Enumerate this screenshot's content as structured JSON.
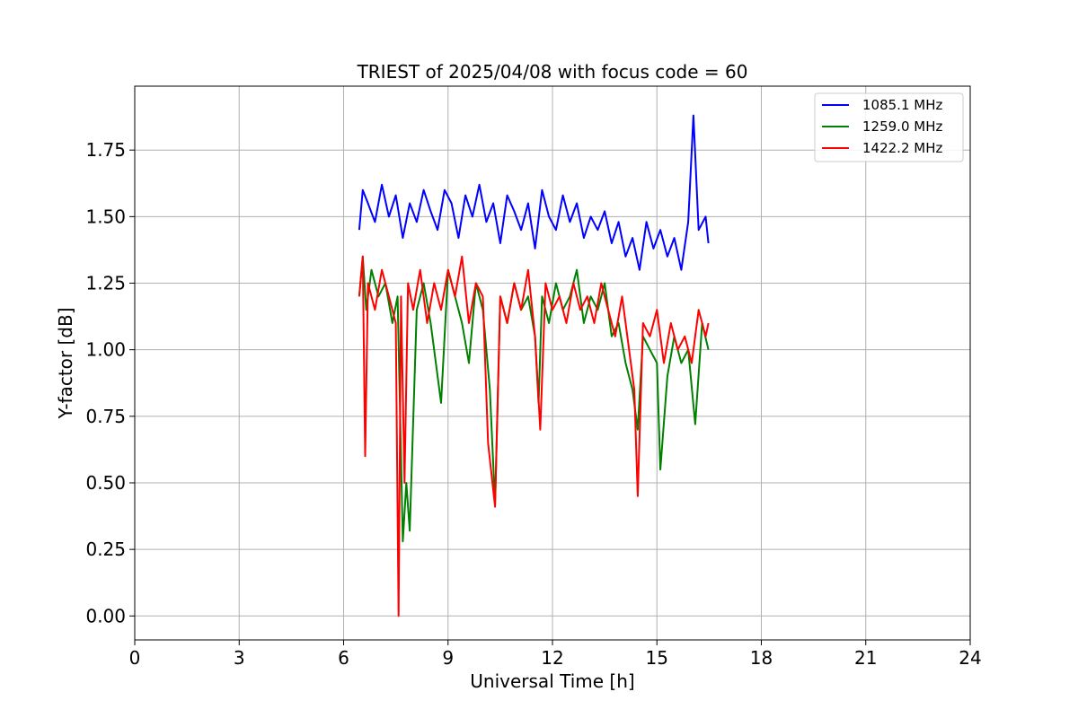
{
  "chart_data": {
    "type": "line",
    "title": "TRIEST of 2025/04/08 with focus code = 60",
    "xlabel": "Universal Time [h]",
    "ylabel": "Y-factor [dB]",
    "xlim": [
      0,
      24
    ],
    "ylim": [
      -0.09,
      1.99
    ],
    "xticks": [
      0,
      3,
      6,
      9,
      12,
      15,
      18,
      21,
      24
    ],
    "yticks": [
      0.0,
      0.25,
      0.5,
      0.75,
      1.0,
      1.25,
      1.5,
      1.75
    ],
    "ytick_labels": [
      "0.00",
      "0.25",
      "0.50",
      "0.75",
      "1.00",
      "1.25",
      "1.50",
      "1.75"
    ],
    "grid": true,
    "legend_position": "top-right",
    "series": [
      {
        "name": "1085.1 MHz",
        "color": "#0000ff",
        "x": [
          6.45,
          6.55,
          6.7,
          6.9,
          7.1,
          7.3,
          7.5,
          7.7,
          7.9,
          8.1,
          8.3,
          8.5,
          8.7,
          8.9,
          9.1,
          9.3,
          9.5,
          9.7,
          9.9,
          10.1,
          10.3,
          10.5,
          10.7,
          10.9,
          11.1,
          11.3,
          11.5,
          11.7,
          11.9,
          12.1,
          12.3,
          12.5,
          12.7,
          12.9,
          13.1,
          13.3,
          13.5,
          13.7,
          13.9,
          14.1,
          14.3,
          14.5,
          14.7,
          14.9,
          15.1,
          15.3,
          15.5,
          15.7,
          15.9,
          16.05,
          16.2,
          16.4,
          16.48
        ],
        "y": [
          1.45,
          1.6,
          1.55,
          1.48,
          1.62,
          1.5,
          1.58,
          1.42,
          1.55,
          1.48,
          1.6,
          1.52,
          1.45,
          1.6,
          1.55,
          1.42,
          1.58,
          1.5,
          1.62,
          1.48,
          1.55,
          1.4,
          1.58,
          1.52,
          1.45,
          1.55,
          1.38,
          1.6,
          1.5,
          1.45,
          1.58,
          1.48,
          1.55,
          1.42,
          1.5,
          1.45,
          1.52,
          1.4,
          1.48,
          1.35,
          1.42,
          1.3,
          1.48,
          1.38,
          1.45,
          1.35,
          1.42,
          1.3,
          1.48,
          1.88,
          1.45,
          1.5,
          1.4
        ]
      },
      {
        "name": "1259.0 MHz",
        "color": "#008000",
        "x": [
          6.45,
          6.55,
          6.65,
          6.8,
          7.0,
          7.2,
          7.4,
          7.55,
          7.7,
          7.8,
          7.9,
          8.1,
          8.3,
          8.5,
          8.8,
          9.0,
          9.2,
          9.4,
          9.6,
          9.8,
          10.0,
          10.2,
          10.35,
          10.5,
          10.7,
          10.9,
          11.1,
          11.3,
          11.5,
          11.6,
          11.7,
          11.9,
          12.1,
          12.3,
          12.5,
          12.7,
          12.9,
          13.1,
          13.3,
          13.5,
          13.7,
          13.9,
          14.1,
          14.3,
          14.45,
          14.6,
          14.8,
          15.0,
          15.1,
          15.3,
          15.5,
          15.7,
          15.9,
          16.1,
          16.3,
          16.48
        ],
        "y": [
          1.2,
          1.35,
          1.15,
          1.3,
          1.2,
          1.25,
          1.1,
          1.2,
          0.28,
          0.5,
          0.32,
          1.15,
          1.25,
          1.1,
          0.8,
          1.3,
          1.2,
          1.1,
          0.95,
          1.25,
          1.15,
          0.85,
          0.42,
          1.2,
          1.1,
          1.25,
          1.15,
          1.2,
          1.05,
          0.8,
          1.2,
          1.1,
          1.25,
          1.15,
          1.2,
          1.3,
          1.1,
          1.2,
          1.15,
          1.25,
          1.05,
          1.1,
          0.95,
          0.85,
          0.7,
          1.05,
          1.0,
          0.95,
          0.55,
          0.9,
          1.05,
          0.95,
          1.0,
          0.72,
          1.1,
          1.0
        ]
      },
      {
        "name": "1422.2 MHz",
        "color": "#ff0000",
        "x": [
          6.45,
          6.55,
          6.62,
          6.7,
          6.9,
          7.1,
          7.3,
          7.5,
          7.58,
          7.65,
          7.75,
          7.85,
          8.0,
          8.2,
          8.4,
          8.6,
          8.8,
          9.0,
          9.2,
          9.4,
          9.6,
          9.8,
          10.0,
          10.15,
          10.35,
          10.5,
          10.7,
          10.9,
          11.1,
          11.3,
          11.5,
          11.65,
          11.8,
          12.0,
          12.2,
          12.4,
          12.6,
          12.8,
          13.0,
          13.2,
          13.4,
          13.6,
          13.8,
          14.0,
          14.2,
          14.35,
          14.45,
          14.6,
          14.8,
          15.0,
          15.2,
          15.4,
          15.6,
          15.8,
          16.0,
          16.2,
          16.4,
          16.48
        ],
        "y": [
          1.2,
          1.35,
          0.6,
          1.25,
          1.15,
          1.3,
          1.2,
          1.1,
          0.0,
          1.2,
          0.5,
          1.25,
          1.15,
          1.3,
          1.1,
          1.25,
          1.15,
          1.3,
          1.2,
          1.35,
          1.1,
          1.25,
          1.2,
          0.65,
          0.41,
          1.2,
          1.1,
          1.25,
          1.15,
          1.3,
          1.05,
          0.7,
          1.25,
          1.15,
          1.2,
          1.1,
          1.25,
          1.15,
          1.2,
          1.1,
          1.25,
          1.15,
          1.05,
          1.2,
          1.0,
          0.85,
          0.45,
          1.1,
          1.05,
          1.15,
          0.95,
          1.1,
          1.0,
          1.05,
          0.95,
          1.15,
          1.05,
          1.1
        ]
      }
    ]
  }
}
